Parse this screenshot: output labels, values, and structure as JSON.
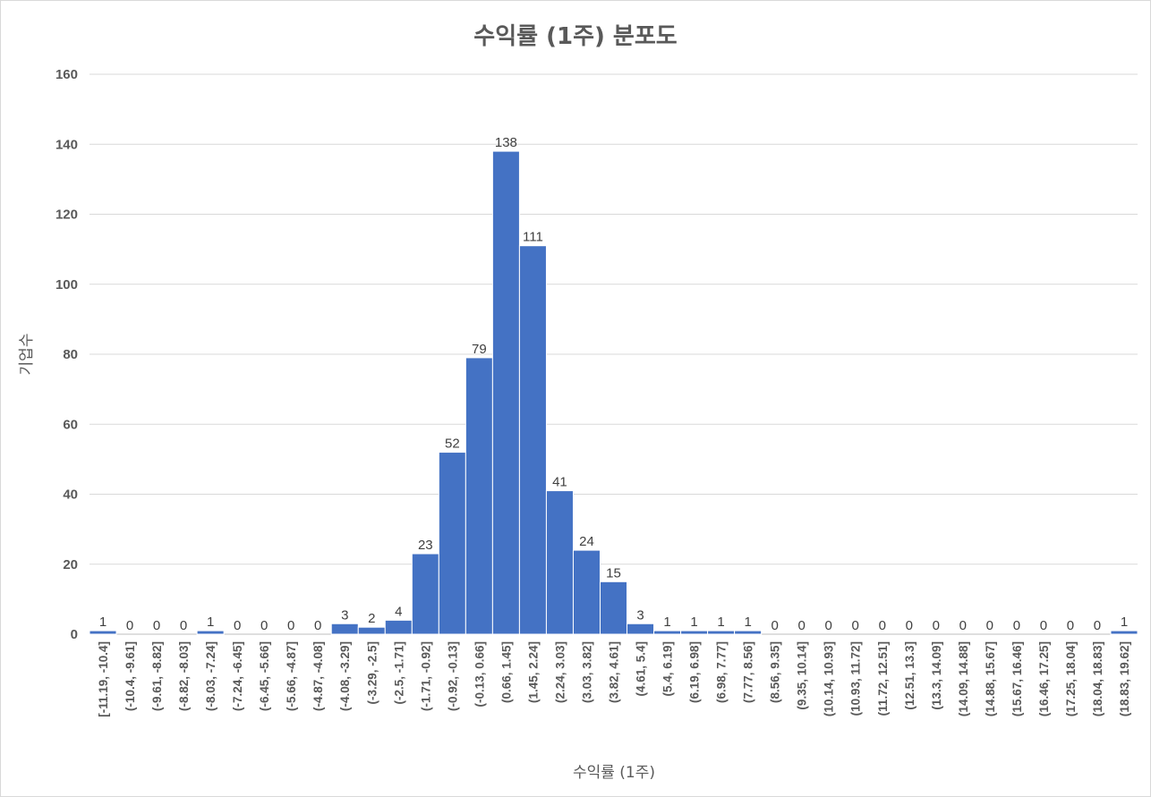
{
  "chart_data": {
    "type": "bar",
    "title": "수익률 (1주) 분포도",
    "xlabel": "수익률 (1주)",
    "ylabel": "기업수",
    "ylim": [
      0,
      160
    ],
    "yticks": [
      0,
      20,
      40,
      60,
      80,
      100,
      120,
      140,
      160
    ],
    "grid": true,
    "legend": "none",
    "bar_color": "#4472C4",
    "categories": [
      "[-11.19, -10.4]",
      "(-10.4, -9.61]",
      "(-9.61, -8.82]",
      "(-8.82, -8.03]",
      "(-8.03, -7.24]",
      "(-7.24, -6.45]",
      "(-6.45, -5.66]",
      "(-5.66, -4.87]",
      "(-4.87, -4.08]",
      "(-4.08, -3.29]",
      "(-3.29, -2.5]",
      "(-2.5, -1.71]",
      "(-1.71, -0.92]",
      "(-0.92, -0.13]",
      "(-0.13, 0.66]",
      "(0.66, 1.45]",
      "(1.45, 2.24]",
      "(2.24, 3.03]",
      "(3.03, 3.82]",
      "(3.82, 4.61]",
      "(4.61, 5.4]",
      "(5.4, 6.19]",
      "(6.19, 6.98]",
      "(6.98, 7.77]",
      "(7.77, 8.56]",
      "(8.56, 9.35]",
      "(9.35, 10.14]",
      "(10.14, 10.93]",
      "(10.93, 11.72]",
      "(11.72, 12.51]",
      "(12.51, 13.3]",
      "(13.3, 14.09]",
      "(14.09, 14.88]",
      "(14.88, 15.67]",
      "(15.67, 16.46]",
      "(16.46, 17.25]",
      "(17.25, 18.04]",
      "(18.04, 18.83]",
      "(18.83, 19.62]"
    ],
    "values": [
      1,
      0,
      0,
      0,
      1,
      0,
      0,
      0,
      0,
      3,
      2,
      4,
      23,
      52,
      79,
      138,
      111,
      41,
      24,
      15,
      3,
      1,
      1,
      1,
      1,
      0,
      0,
      0,
      0,
      0,
      0,
      0,
      0,
      0,
      0,
      0,
      0,
      0,
      1
    ]
  }
}
